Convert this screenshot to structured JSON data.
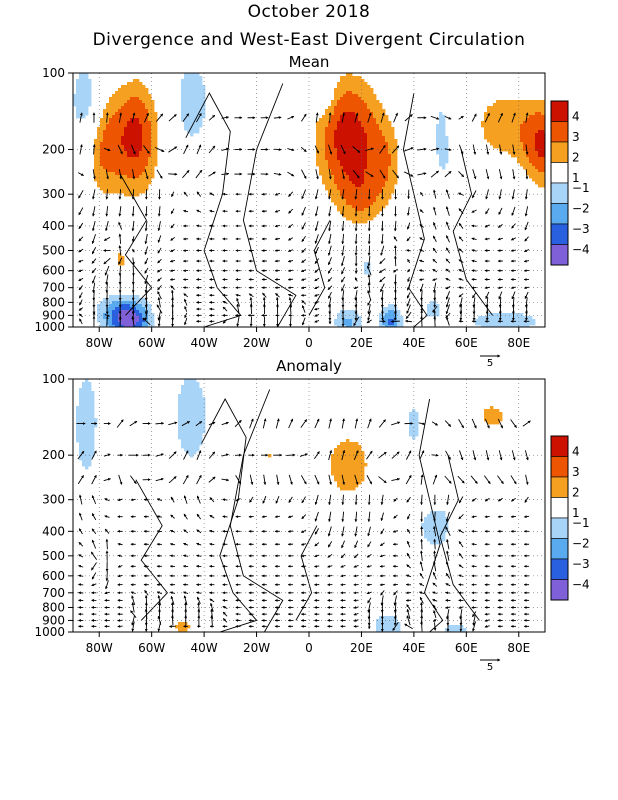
{
  "header": {
    "title_line1": "October 2018",
    "title_line2": "Divergence and West-East Divergent Circulation"
  },
  "colors": {
    "pos4": "#cc1100",
    "pos3": "#ee5500",
    "pos2": "#f5a020",
    "pos1": "#ffffff",
    "neg1": "#a8d4f8",
    "neg2": "#5aaaf0",
    "neg3": "#2860e0",
    "neg4": "#8060d8",
    "line": "#000000"
  },
  "chart_data": [
    {
      "type": "heatmap",
      "panel_title": "Mean",
      "y_scale": "log (pressure)",
      "y_reversed": true,
      "ylim": [
        1000,
        100
      ],
      "xlim": [
        -90,
        90
      ],
      "x_ticks": [
        -80,
        -60,
        -40,
        -20,
        0,
        20,
        40,
        60,
        80
      ],
      "x_tick_labels": [
        "80W",
        "60W",
        "40W",
        "20W",
        "0",
        "20E",
        "40E",
        "60E",
        "80E"
      ],
      "y_ticks": [
        100,
        200,
        300,
        400,
        500,
        600,
        700,
        800,
        900,
        1000
      ],
      "y_tick_labels": [
        "100",
        "200",
        "300",
        "400",
        "500",
        "600",
        "700",
        "800",
        "900",
        "1000"
      ],
      "grid": "dotted",
      "colorbar": {
        "levels": [
          4,
          3,
          2,
          1,
          -1,
          -2,
          -3,
          -4
        ],
        "labels": [
          "4",
          "3",
          "2",
          "1",
          "−1",
          "−2",
          "−3",
          "−4"
        ]
      },
      "vector_reference_label": "5",
      "blobs": [
        {
          "lon": -66,
          "p": 180,
          "a": 4.3,
          "rx": 7,
          "ry": 0.42
        },
        {
          "lon": -79,
          "p": 200,
          "a": 2.6,
          "rx": 5,
          "ry": 0.38
        },
        {
          "lon": -85,
          "p": 130,
          "a": -2.2,
          "rx": 4,
          "ry": 0.25
        },
        {
          "lon": -45,
          "p": 130,
          "a": -1.5,
          "rx": 6,
          "ry": 0.35
        },
        {
          "lon": 15,
          "p": 180,
          "a": 4.6,
          "rx": 10,
          "ry": 0.45
        },
        {
          "lon": 30,
          "p": 230,
          "a": 1.8,
          "rx": 5,
          "ry": 0.3
        },
        {
          "lon": 6,
          "p": 120,
          "a": -1.4,
          "rx": 3,
          "ry": 0.15
        },
        {
          "lon": 74,
          "p": 160,
          "a": 2.6,
          "rx": 12,
          "ry": 0.3
        },
        {
          "lon": 90,
          "p": 200,
          "a": 3.4,
          "rx": 6,
          "ry": 0.3
        },
        {
          "lon": 52,
          "p": 170,
          "a": -1.5,
          "rx": 6,
          "ry": 0.5
        },
        {
          "lon": 20,
          "p": 320,
          "a": 1.6,
          "rx": 6,
          "ry": 0.2
        },
        {
          "lon": -72,
          "p": 550,
          "a": 2.0,
          "rx": 3,
          "ry": 0.18
        },
        {
          "lon": 33,
          "p": 600,
          "a": 1.8,
          "rx": 2,
          "ry": 0.12
        },
        {
          "lon": 22,
          "p": 580,
          "a": -1.3,
          "rx": 2,
          "ry": 0.12
        },
        {
          "lon": -68,
          "p": 950,
          "a": -3.8,
          "rx": 6,
          "ry": 0.12
        },
        {
          "lon": -73,
          "p": 860,
          "a": -1.8,
          "rx": 6,
          "ry": 0.12
        },
        {
          "lon": -54,
          "p": 880,
          "a": 1.8,
          "rx": 3,
          "ry": 0.07
        },
        {
          "lon": -16,
          "p": 900,
          "a": 1.6,
          "rx": 6,
          "ry": 0.05
        },
        {
          "lon": 15,
          "p": 960,
          "a": -2.2,
          "rx": 4,
          "ry": 0.1
        },
        {
          "lon": 31,
          "p": 950,
          "a": -3.2,
          "rx": 3,
          "ry": 0.1
        },
        {
          "lon": 47,
          "p": 850,
          "a": -1.4,
          "rx": 3,
          "ry": 0.08
        },
        {
          "lon": 75,
          "p": 950,
          "a": -1.6,
          "rx": 12,
          "ry": 0.08
        }
      ]
    },
    {
      "type": "heatmap",
      "panel_title": "Anomaly",
      "y_scale": "log (pressure)",
      "y_reversed": true,
      "ylim": [
        1000,
        100
      ],
      "xlim": [
        -90,
        90
      ],
      "x_ticks": [
        -80,
        -60,
        -40,
        -20,
        0,
        20,
        40,
        60,
        80
      ],
      "x_tick_labels": [
        "80W",
        "60W",
        "40W",
        "20W",
        "0",
        "20E",
        "40E",
        "60E",
        "80E"
      ],
      "y_ticks": [
        100,
        200,
        300,
        400,
        500,
        600,
        700,
        800,
        900,
        1000
      ],
      "y_tick_labels": [
        "100",
        "200",
        "300",
        "400",
        "500",
        "600",
        "700",
        "800",
        "900",
        "1000"
      ],
      "grid": "dotted",
      "colorbar": {
        "levels": [
          4,
          3,
          2,
          1,
          -1,
          -2,
          -3,
          -4
        ],
        "labels": [
          "4",
          "3",
          "2",
          "1",
          "−1",
          "−2",
          "−3",
          "−4"
        ]
      },
      "vector_reference_label": "5",
      "blobs": [
        {
          "lon": -85,
          "p": 150,
          "a": -1.5,
          "rx": 4,
          "ry": 0.45
        },
        {
          "lon": -45,
          "p": 140,
          "a": -1.5,
          "rx": 6,
          "ry": 0.4
        },
        {
          "lon": -70,
          "p": 200,
          "a": 1.6,
          "rx": 2,
          "ry": 0.12
        },
        {
          "lon": -15,
          "p": 200,
          "a": 2.0,
          "rx": 7,
          "ry": 0.15
        },
        {
          "lon": 15,
          "p": 220,
          "a": 2.8,
          "rx": 8,
          "ry": 0.28
        },
        {
          "lon": 70,
          "p": 140,
          "a": 2.1,
          "rx": 12,
          "ry": 0.25
        },
        {
          "lon": 87,
          "p": 200,
          "a": 1.6,
          "rx": 4,
          "ry": 0.15
        },
        {
          "lon": 40,
          "p": 150,
          "a": -1.2,
          "rx": 5,
          "ry": 0.3
        },
        {
          "lon": 48,
          "p": 380,
          "a": -1.6,
          "rx": 5,
          "ry": 0.18
        },
        {
          "lon": 45,
          "p": 280,
          "a": 1.3,
          "rx": 3,
          "ry": 0.1
        },
        {
          "lon": -78,
          "p": 520,
          "a": 1.5,
          "rx": 2,
          "ry": 0.08
        },
        {
          "lon": -48,
          "p": 950,
          "a": 2.2,
          "rx": 6,
          "ry": 0.08
        },
        {
          "lon": -62,
          "p": 860,
          "a": 1.6,
          "rx": 3,
          "ry": 0.06
        },
        {
          "lon": 30,
          "p": 960,
          "a": -2.0,
          "rx": 4,
          "ry": 0.1
        },
        {
          "lon": 42,
          "p": 960,
          "a": 1.7,
          "rx": 3,
          "ry": 0.08
        },
        {
          "lon": 56,
          "p": 980,
          "a": -1.5,
          "rx": 4,
          "ry": 0.05
        }
      ]
    }
  ]
}
